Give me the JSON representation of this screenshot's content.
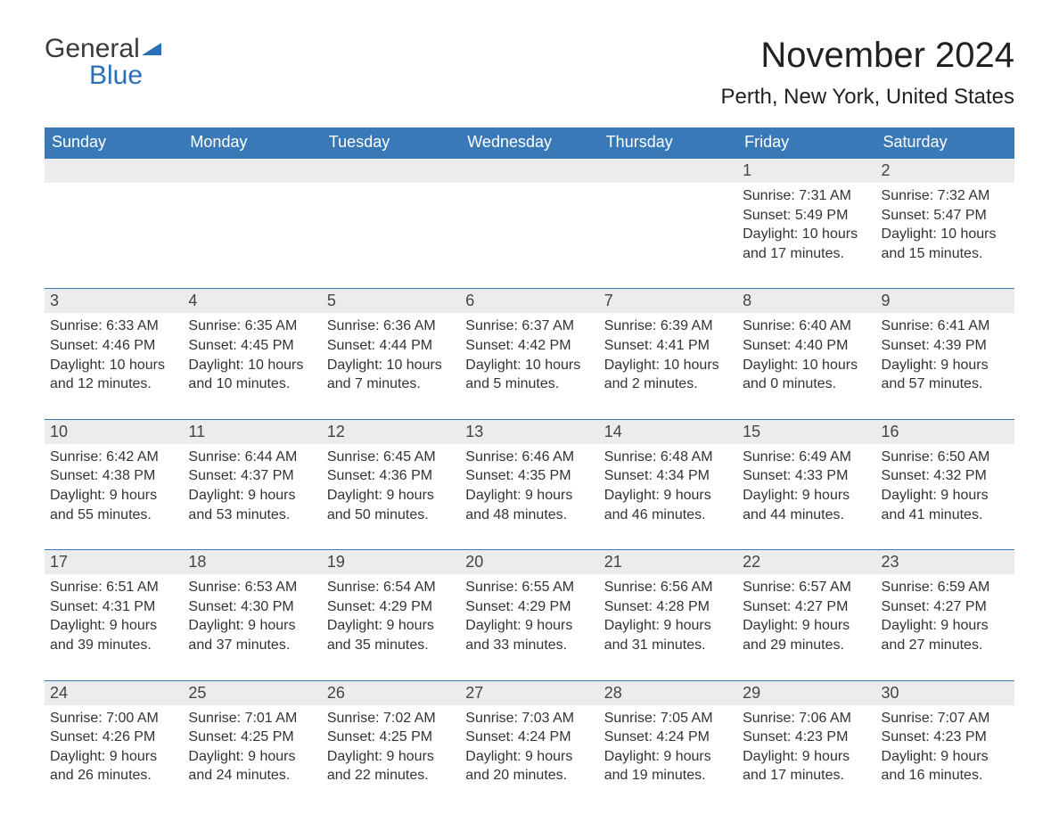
{
  "logo": {
    "word1": "General",
    "word2": "Blue"
  },
  "title": "November 2024",
  "location": "Perth, New York, United States",
  "colors": {
    "header_bg": "#3a79b7",
    "header_text": "#ffffff",
    "daynum_bg": "#ececec",
    "row_border": "#3a79b7",
    "brand_blue": "#2d6fb5",
    "text": "#333333",
    "background": "#ffffff"
  },
  "weekdays": [
    "Sunday",
    "Monday",
    "Tuesday",
    "Wednesday",
    "Thursday",
    "Friday",
    "Saturday"
  ],
  "weeks": [
    [
      {
        "day": "",
        "sunrise": "",
        "sunset": "",
        "daylight": ""
      },
      {
        "day": "",
        "sunrise": "",
        "sunset": "",
        "daylight": ""
      },
      {
        "day": "",
        "sunrise": "",
        "sunset": "",
        "daylight": ""
      },
      {
        "day": "",
        "sunrise": "",
        "sunset": "",
        "daylight": ""
      },
      {
        "day": "",
        "sunrise": "",
        "sunset": "",
        "daylight": ""
      },
      {
        "day": "1",
        "sunrise": "Sunrise: 7:31 AM",
        "sunset": "Sunset: 5:49 PM",
        "daylight": "Daylight: 10 hours and 17 minutes."
      },
      {
        "day": "2",
        "sunrise": "Sunrise: 7:32 AM",
        "sunset": "Sunset: 5:47 PM",
        "daylight": "Daylight: 10 hours and 15 minutes."
      }
    ],
    [
      {
        "day": "3",
        "sunrise": "Sunrise: 6:33 AM",
        "sunset": "Sunset: 4:46 PM",
        "daylight": "Daylight: 10 hours and 12 minutes."
      },
      {
        "day": "4",
        "sunrise": "Sunrise: 6:35 AM",
        "sunset": "Sunset: 4:45 PM",
        "daylight": "Daylight: 10 hours and 10 minutes."
      },
      {
        "day": "5",
        "sunrise": "Sunrise: 6:36 AM",
        "sunset": "Sunset: 4:44 PM",
        "daylight": "Daylight: 10 hours and 7 minutes."
      },
      {
        "day": "6",
        "sunrise": "Sunrise: 6:37 AM",
        "sunset": "Sunset: 4:42 PM",
        "daylight": "Daylight: 10 hours and 5 minutes."
      },
      {
        "day": "7",
        "sunrise": "Sunrise: 6:39 AM",
        "sunset": "Sunset: 4:41 PM",
        "daylight": "Daylight: 10 hours and 2 minutes."
      },
      {
        "day": "8",
        "sunrise": "Sunrise: 6:40 AM",
        "sunset": "Sunset: 4:40 PM",
        "daylight": "Daylight: 10 hours and 0 minutes."
      },
      {
        "day": "9",
        "sunrise": "Sunrise: 6:41 AM",
        "sunset": "Sunset: 4:39 PM",
        "daylight": "Daylight: 9 hours and 57 minutes."
      }
    ],
    [
      {
        "day": "10",
        "sunrise": "Sunrise: 6:42 AM",
        "sunset": "Sunset: 4:38 PM",
        "daylight": "Daylight: 9 hours and 55 minutes."
      },
      {
        "day": "11",
        "sunrise": "Sunrise: 6:44 AM",
        "sunset": "Sunset: 4:37 PM",
        "daylight": "Daylight: 9 hours and 53 minutes."
      },
      {
        "day": "12",
        "sunrise": "Sunrise: 6:45 AM",
        "sunset": "Sunset: 4:36 PM",
        "daylight": "Daylight: 9 hours and 50 minutes."
      },
      {
        "day": "13",
        "sunrise": "Sunrise: 6:46 AM",
        "sunset": "Sunset: 4:35 PM",
        "daylight": "Daylight: 9 hours and 48 minutes."
      },
      {
        "day": "14",
        "sunrise": "Sunrise: 6:48 AM",
        "sunset": "Sunset: 4:34 PM",
        "daylight": "Daylight: 9 hours and 46 minutes."
      },
      {
        "day": "15",
        "sunrise": "Sunrise: 6:49 AM",
        "sunset": "Sunset: 4:33 PM",
        "daylight": "Daylight: 9 hours and 44 minutes."
      },
      {
        "day": "16",
        "sunrise": "Sunrise: 6:50 AM",
        "sunset": "Sunset: 4:32 PM",
        "daylight": "Daylight: 9 hours and 41 minutes."
      }
    ],
    [
      {
        "day": "17",
        "sunrise": "Sunrise: 6:51 AM",
        "sunset": "Sunset: 4:31 PM",
        "daylight": "Daylight: 9 hours and 39 minutes."
      },
      {
        "day": "18",
        "sunrise": "Sunrise: 6:53 AM",
        "sunset": "Sunset: 4:30 PM",
        "daylight": "Daylight: 9 hours and 37 minutes."
      },
      {
        "day": "19",
        "sunrise": "Sunrise: 6:54 AM",
        "sunset": "Sunset: 4:29 PM",
        "daylight": "Daylight: 9 hours and 35 minutes."
      },
      {
        "day": "20",
        "sunrise": "Sunrise: 6:55 AM",
        "sunset": "Sunset: 4:29 PM",
        "daylight": "Daylight: 9 hours and 33 minutes."
      },
      {
        "day": "21",
        "sunrise": "Sunrise: 6:56 AM",
        "sunset": "Sunset: 4:28 PM",
        "daylight": "Daylight: 9 hours and 31 minutes."
      },
      {
        "day": "22",
        "sunrise": "Sunrise: 6:57 AM",
        "sunset": "Sunset: 4:27 PM",
        "daylight": "Daylight: 9 hours and 29 minutes."
      },
      {
        "day": "23",
        "sunrise": "Sunrise: 6:59 AM",
        "sunset": "Sunset: 4:27 PM",
        "daylight": "Daylight: 9 hours and 27 minutes."
      }
    ],
    [
      {
        "day": "24",
        "sunrise": "Sunrise: 7:00 AM",
        "sunset": "Sunset: 4:26 PM",
        "daylight": "Daylight: 9 hours and 26 minutes."
      },
      {
        "day": "25",
        "sunrise": "Sunrise: 7:01 AM",
        "sunset": "Sunset: 4:25 PM",
        "daylight": "Daylight: 9 hours and 24 minutes."
      },
      {
        "day": "26",
        "sunrise": "Sunrise: 7:02 AM",
        "sunset": "Sunset: 4:25 PM",
        "daylight": "Daylight: 9 hours and 22 minutes."
      },
      {
        "day": "27",
        "sunrise": "Sunrise: 7:03 AM",
        "sunset": "Sunset: 4:24 PM",
        "daylight": "Daylight: 9 hours and 20 minutes."
      },
      {
        "day": "28",
        "sunrise": "Sunrise: 7:05 AM",
        "sunset": "Sunset: 4:24 PM",
        "daylight": "Daylight: 9 hours and 19 minutes."
      },
      {
        "day": "29",
        "sunrise": "Sunrise: 7:06 AM",
        "sunset": "Sunset: 4:23 PM",
        "daylight": "Daylight: 9 hours and 17 minutes."
      },
      {
        "day": "30",
        "sunrise": "Sunrise: 7:07 AM",
        "sunset": "Sunset: 4:23 PM",
        "daylight": "Daylight: 9 hours and 16 minutes."
      }
    ]
  ]
}
